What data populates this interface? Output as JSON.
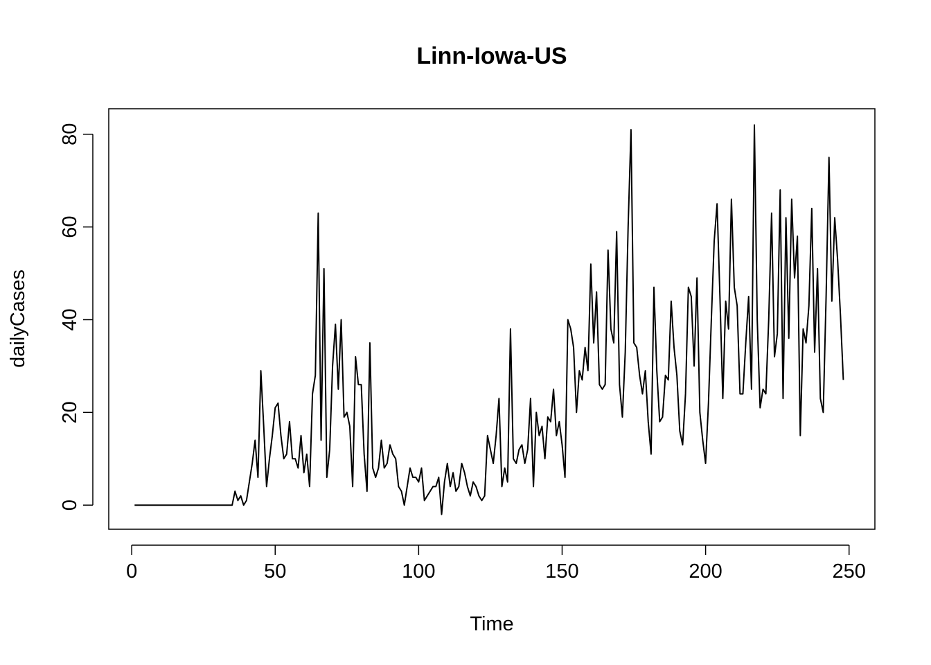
{
  "chart_data": {
    "type": "line",
    "title": "Linn-Iowa-US",
    "xlabel": "Time",
    "ylabel": "dailyCases",
    "xlim": [
      -8,
      259
    ],
    "ylim": [
      -5.2,
      85.5
    ],
    "x_ticks": [
      0,
      50,
      100,
      150,
      200,
      250
    ],
    "y_ticks": [
      0,
      20,
      40,
      60,
      80
    ],
    "grid": false,
    "legend": "none",
    "line_color": "#000000",
    "x_start": 1,
    "values": [
      0,
      0,
      0,
      0,
      0,
      0,
      0,
      0,
      0,
      0,
      0,
      0,
      0,
      0,
      0,
      0,
      0,
      0,
      0,
      0,
      0,
      0,
      0,
      0,
      0,
      0,
      0,
      0,
      0,
      0,
      0,
      0,
      0,
      0,
      0,
      3,
      1,
      2,
      0,
      1,
      5,
      9,
      14,
      6,
      29,
      17,
      4,
      10,
      15,
      21,
      22,
      15,
      10,
      11,
      18,
      10,
      10,
      8,
      15,
      7,
      11,
      4,
      24,
      28,
      63,
      14,
      51,
      6,
      12,
      30,
      39,
      25,
      40,
      19,
      20,
      17,
      4,
      32,
      26,
      26,
      11,
      3,
      35,
      8,
      6,
      8,
      14,
      8,
      9,
      13,
      11,
      10,
      4,
      3,
      0,
      4,
      8,
      6,
      6,
      5,
      8,
      1,
      2,
      3,
      4,
      4,
      6,
      -2,
      5,
      9,
      4,
      7,
      3,
      4,
      9,
      7,
      4,
      2,
      5,
      4,
      2,
      1,
      2,
      15,
      12,
      9,
      15,
      23,
      4,
      8,
      5,
      38,
      10,
      9,
      12,
      13,
      9,
      12,
      23,
      4,
      20,
      15,
      17,
      10,
      19,
      18,
      25,
      15,
      18,
      13,
      6,
      40,
      38,
      34,
      20,
      29,
      27,
      34,
      29,
      52,
      35,
      46,
      26,
      25,
      26,
      55,
      38,
      35,
      59,
      26,
      19,
      33,
      60,
      81,
      35,
      34,
      28,
      24,
      29,
      18,
      11,
      47,
      29,
      18,
      19,
      28,
      27,
      44,
      34,
      28,
      16,
      13,
      24,
      47,
      45,
      30,
      49,
      20,
      14,
      9,
      22,
      40,
      57,
      65,
      45,
      23,
      44,
      38,
      66,
      47,
      43,
      24,
      24,
      35,
      45,
      25,
      82,
      40,
      21,
      25,
      24,
      40,
      63,
      32,
      37,
      68,
      23,
      62,
      36,
      66,
      49,
      58,
      15,
      38,
      35,
      43,
      64,
      33,
      51,
      23,
      20,
      45,
      75,
      44,
      62,
      53,
      41,
      27
    ]
  }
}
